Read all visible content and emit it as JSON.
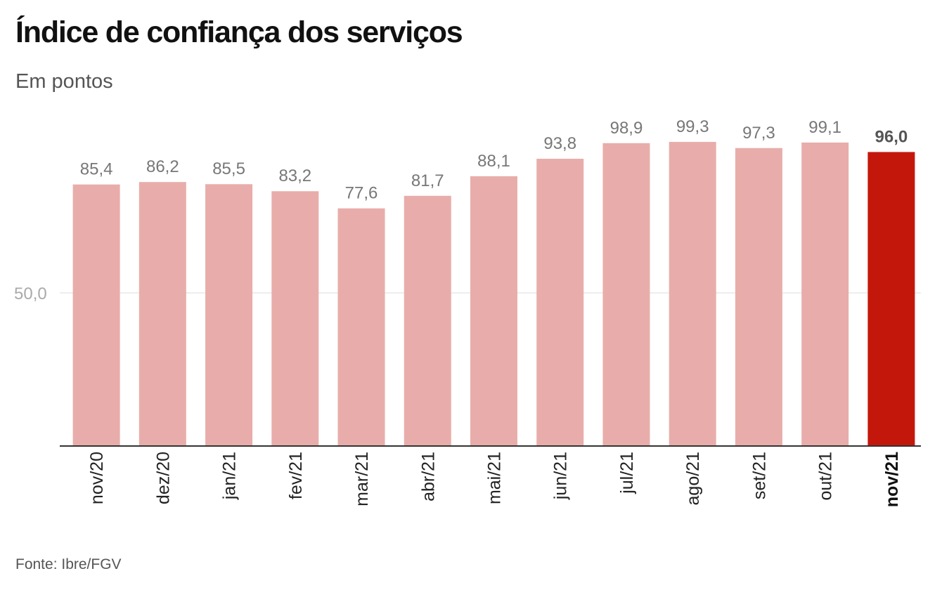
{
  "chart_data": {
    "type": "bar",
    "title": "Índice de confiança dos serviços",
    "subtitle": "Em pontos",
    "source": "Fonte: Ibre/FGV",
    "categories": [
      "nov/20",
      "dez/20",
      "jan/21",
      "fev/21",
      "mar/21",
      "abr/21",
      "mai/21",
      "jun/21",
      "jul/21",
      "ago/21",
      "set/21",
      "out/21",
      "nov/21"
    ],
    "values": [
      85.4,
      86.2,
      85.5,
      83.2,
      77.6,
      81.7,
      88.1,
      93.8,
      98.9,
      99.3,
      97.3,
      99.1,
      96.0
    ],
    "value_labels": [
      "85,4",
      "86,2",
      "85,5",
      "83,2",
      "77,6",
      "81,7",
      "88,1",
      "93,8",
      "98,9",
      "99,3",
      "97,3",
      "99,1",
      "96,0"
    ],
    "highlight_index": 12,
    "yticks": [
      {
        "value": 50,
        "label": "50,0"
      }
    ],
    "ylim": [
      0,
      100
    ],
    "grid": true,
    "colors": {
      "bar": "#e8adaa",
      "highlight": "#c4170c",
      "axis": "#333333",
      "grid": "#dddddd"
    }
  }
}
